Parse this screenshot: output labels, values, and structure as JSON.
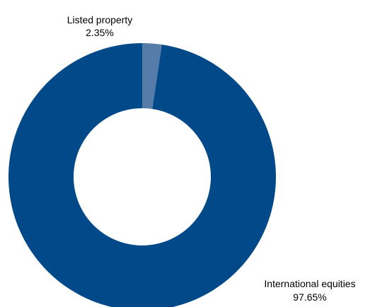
{
  "chart_data": {
    "type": "pie",
    "variant": "donut",
    "categories": [
      "Listed property",
      "International equities"
    ],
    "values": [
      2.35,
      97.65
    ],
    "value_labels": [
      "2.35%",
      "97.65%"
    ],
    "unit": "%",
    "colors": [
      "#567DAA",
      "#02498A"
    ],
    "start": "12 o'clock",
    "direction": "clockwise",
    "legend": "none",
    "data_labels": "outside"
  }
}
